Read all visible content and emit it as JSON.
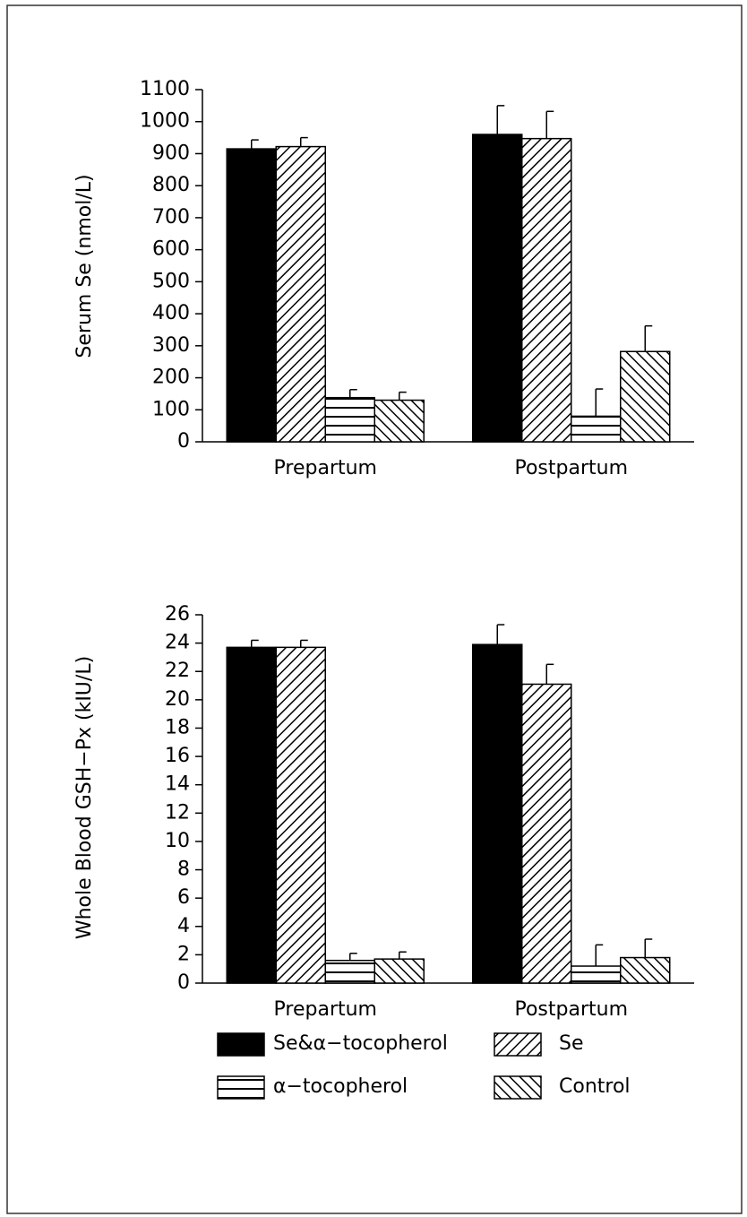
{
  "chart_data": [
    {
      "type": "bar",
      "ylabel": "Serum Se (nmol/L)",
      "categories": [
        "Prepartum",
        "Postpartum"
      ],
      "ylim": [
        0,
        1100
      ],
      "yticks": [
        0,
        100,
        200,
        300,
        400,
        500,
        600,
        700,
        800,
        900,
        1000,
        1100
      ],
      "series": [
        {
          "name": "Se&α−tocopherol",
          "color": "#000000",
          "pattern": "solid",
          "values": [
            915,
            960
          ],
          "errors": [
            28,
            90
          ]
        },
        {
          "name": "Se",
          "color": "#000000",
          "pattern": "diagonal",
          "values": [
            922,
            947
          ],
          "errors": [
            28,
            85
          ]
        },
        {
          "name": "α−tocopherol",
          "color": "#000000",
          "pattern": "horizontal",
          "values": [
            138,
            80
          ],
          "errors": [
            25,
            85
          ]
        },
        {
          "name": "Control",
          "color": "#000000",
          "pattern": "back-diagonal",
          "values": [
            130,
            282
          ],
          "errors": [
            25,
            80
          ]
        }
      ]
    },
    {
      "type": "bar",
      "ylabel": "Whole Blood GSH−Px (kIU/L)",
      "categories": [
        "Prepartum",
        "Postpartum"
      ],
      "ylim": [
        0,
        26
      ],
      "yticks": [
        0,
        2,
        4,
        6,
        8,
        10,
        12,
        14,
        16,
        18,
        20,
        22,
        24,
        26
      ],
      "series": [
        {
          "color": "#000000",
          "pattern": "solid",
          "values": [
            23.7,
            23.9
          ],
          "errors": [
            0.5,
            1.4
          ]
        },
        {
          "color": "#000000",
          "pattern": "diagonal",
          "values": [
            23.7,
            21.1
          ],
          "errors": [
            0.5,
            1.4
          ]
        },
        {
          "color": "#000000",
          "pattern": "horizontal",
          "values": [
            1.6,
            1.2
          ],
          "errors": [
            0.5,
            1.5
          ]
        },
        {
          "color": "#000000",
          "pattern": "back-diagonal",
          "values": [
            1.7,
            1.8
          ],
          "errors": [
            0.5,
            1.3
          ]
        }
      ]
    }
  ]
}
